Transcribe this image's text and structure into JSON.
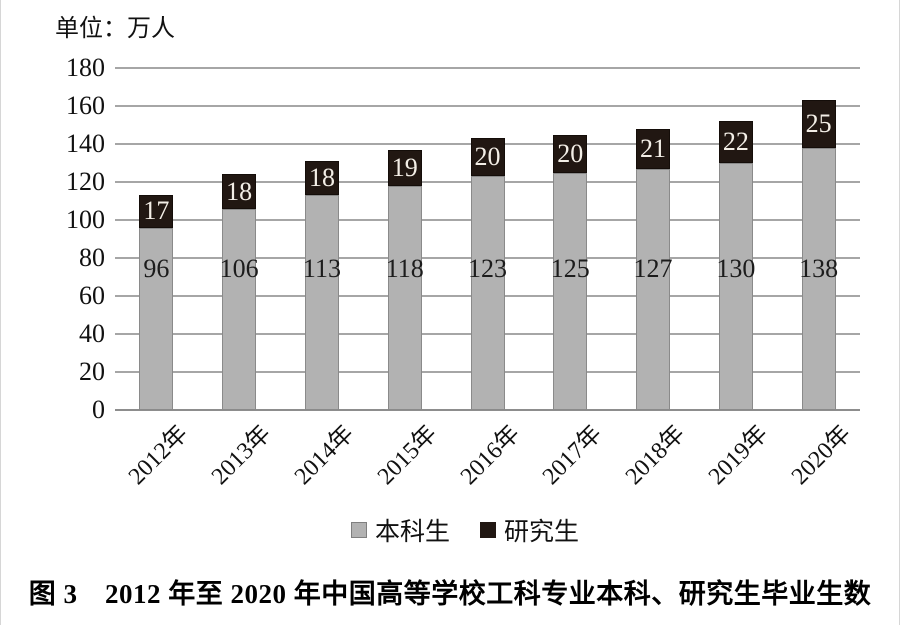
{
  "unit_label": "单位：万人",
  "caption": "图 3　2012 年至 2020 年中国高等学校工科专业本科、研究生毕业生数",
  "chart_data": {
    "type": "bar",
    "stacked": true,
    "title": "图 3 2012 年至 2020 年中国高等学校工科专业本科、研究生毕业生数",
    "unit": "万人",
    "categories": [
      "2012年",
      "2013年",
      "2014年",
      "2015年",
      "2016年",
      "2017年",
      "2018年",
      "2019年",
      "2020年"
    ],
    "series": [
      {
        "name": "本科生",
        "color": "#b2b2b2",
        "values": [
          96,
          106,
          113,
          118,
          123,
          125,
          127,
          130,
          138
        ]
      },
      {
        "name": "研究生",
        "color": "#211712",
        "values": [
          17,
          18,
          18,
          19,
          20,
          20,
          21,
          22,
          25
        ]
      }
    ],
    "ylim": [
      0,
      180
    ],
    "yticks": [
      0,
      20,
      40,
      60,
      80,
      100,
      120,
      140,
      160,
      180
    ],
    "grid": true,
    "legend_position": "bottom",
    "value_label_color_undergrad": "#1c1c1c",
    "value_label_color_grad": "#f3eee6",
    "gridline_color": "#a6a6a6"
  }
}
